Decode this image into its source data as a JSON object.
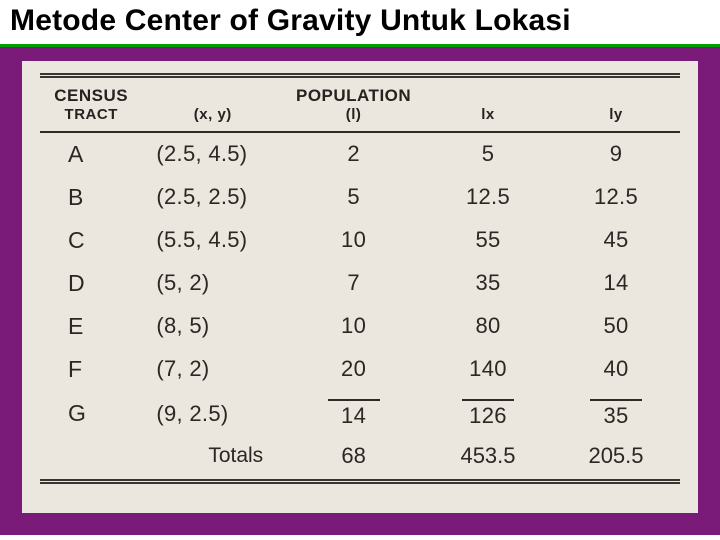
{
  "slide": {
    "title": "Metode Center of Gravity Untuk Lokasi",
    "colors": {
      "title_underline": "#00a000",
      "frame_background": "#7a1b7a",
      "paper_background": "#ebe6de",
      "rule_color": "#2f2a27",
      "text_color": "#2b2724"
    }
  },
  "table": {
    "type": "table",
    "columns": [
      {
        "key": "tract",
        "heading_line1": "CENSUS",
        "heading_line2": "TRACT",
        "width_pct": 16,
        "align": "left"
      },
      {
        "key": "xy",
        "heading_line1": "",
        "heading_line2": "(x, y)",
        "width_pct": 22,
        "align": "left"
      },
      {
        "key": "pop",
        "heading_line1": "POPULATION",
        "heading_line2": "(l)",
        "width_pct": 22,
        "align": "center"
      },
      {
        "key": "lx",
        "heading_line1": "",
        "heading_line2": "lx",
        "width_pct": 20,
        "align": "center"
      },
      {
        "key": "ly",
        "heading_line1": "",
        "heading_line2": "ly",
        "width_pct": 20,
        "align": "center"
      }
    ],
    "rows": [
      {
        "tract": "A",
        "xy": "(2.5, 4.5)",
        "pop": "2",
        "lx": "5",
        "ly": "9"
      },
      {
        "tract": "B",
        "xy": "(2.5, 2.5)",
        "pop": "5",
        "lx": "12.5",
        "ly": "12.5"
      },
      {
        "tract": "C",
        "xy": "(5.5, 4.5)",
        "pop": "10",
        "lx": "55",
        "ly": "45"
      },
      {
        "tract": "D",
        "xy": "(5, 2)",
        "pop": "7",
        "lx": "35",
        "ly": "14"
      },
      {
        "tract": "E",
        "xy": "(8, 5)",
        "pop": "10",
        "lx": "80",
        "ly": "50"
      },
      {
        "tract": "F",
        "xy": "(7, 2)",
        "pop": "20",
        "lx": "140",
        "ly": "40"
      },
      {
        "tract": "G",
        "xy": "(9, 2.5)",
        "pop": "14",
        "lx": "126",
        "ly": "35"
      }
    ],
    "totals_label": "Totals",
    "totals": {
      "pop": "68",
      "lx": "453.5",
      "ly": "205.5"
    },
    "header_fontsize_pt": 13,
    "body_fontsize_pt": 16
  }
}
